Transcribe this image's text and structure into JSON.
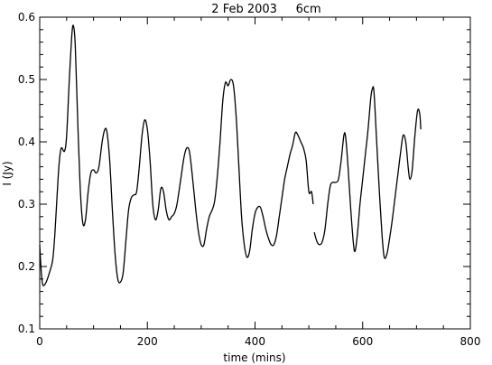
{
  "chart_data": {
    "type": "line",
    "title": "2 Feb 2003     6cm",
    "xlabel": "time (mins)",
    "ylabel": "I (Jy)",
    "xlim": [
      0,
      800
    ],
    "ylim": [
      0.1,
      0.6
    ],
    "xticks": [
      0,
      200,
      400,
      600,
      800
    ],
    "yticks": [
      0.1,
      0.2,
      0.3,
      0.4,
      0.5,
      0.6
    ],
    "xtick_labels": [
      "0",
      "200",
      "400",
      "600",
      "800"
    ],
    "ytick_labels": [
      "0.1",
      "0.2",
      "0.3",
      "0.4",
      "0.5",
      "0.6"
    ],
    "grid": false,
    "series": [
      {
        "segments": [
          [
            [
              0,
              0.235
            ],
            [
              3,
              0.19
            ],
            [
              6,
              0.17
            ],
            [
              12,
              0.175
            ],
            [
              18,
              0.19
            ],
            [
              24,
              0.21
            ],
            [
              28,
              0.25
            ],
            [
              32,
              0.31
            ],
            [
              36,
              0.365
            ],
            [
              40,
              0.39
            ],
            [
              46,
              0.385
            ],
            [
              50,
              0.41
            ],
            [
              55,
              0.5
            ],
            [
              60,
              0.575
            ],
            [
              63,
              0.585
            ],
            [
              66,
              0.555
            ],
            [
              70,
              0.45
            ],
            [
              75,
              0.33
            ],
            [
              80,
              0.27
            ],
            [
              85,
              0.275
            ],
            [
              90,
              0.32
            ],
            [
              95,
              0.35
            ],
            [
              100,
              0.355
            ],
            [
              105,
              0.35
            ],
            [
              110,
              0.36
            ],
            [
              116,
              0.4
            ],
            [
              121,
              0.42
            ],
            [
              125,
              0.415
            ],
            [
              130,
              0.37
            ],
            [
              135,
              0.29
            ],
            [
              140,
              0.22
            ],
            [
              145,
              0.18
            ],
            [
              150,
              0.175
            ],
            [
              155,
              0.19
            ],
            [
              160,
              0.24
            ],
            [
              165,
              0.29
            ],
            [
              170,
              0.31
            ],
            [
              175,
              0.315
            ],
            [
              180,
              0.32
            ],
            [
              185,
              0.36
            ],
            [
              190,
              0.41
            ],
            [
              195,
              0.435
            ],
            [
              200,
              0.42
            ],
            [
              205,
              0.37
            ],
            [
              210,
              0.3
            ],
            [
              215,
              0.275
            ],
            [
              220,
              0.29
            ],
            [
              225,
              0.325
            ],
            [
              230,
              0.32
            ],
            [
              235,
              0.29
            ],
            [
              240,
              0.275
            ],
            [
              245,
              0.28
            ],
            [
              250,
              0.285
            ],
            [
              255,
              0.3
            ],
            [
              262,
              0.34
            ],
            [
              268,
              0.375
            ],
            [
              273,
              0.39
            ],
            [
              278,
              0.385
            ],
            [
              283,
              0.35
            ],
            [
              290,
              0.29
            ],
            [
              295,
              0.255
            ],
            [
              300,
              0.235
            ],
            [
              305,
              0.235
            ],
            [
              310,
              0.26
            ],
            [
              315,
              0.28
            ],
            [
              320,
              0.29
            ],
            [
              325,
              0.305
            ],
            [
              330,
              0.345
            ],
            [
              335,
              0.4
            ],
            [
              340,
              0.465
            ],
            [
              345,
              0.495
            ],
            [
              350,
              0.49
            ],
            [
              355,
              0.5
            ],
            [
              360,
              0.49
            ],
            [
              365,
              0.44
            ],
            [
              370,
              0.36
            ],
            [
              375,
              0.28
            ],
            [
              380,
              0.235
            ],
            [
              385,
              0.215
            ],
            [
              390,
              0.225
            ],
            [
              395,
              0.26
            ],
            [
              400,
              0.285
            ],
            [
              405,
              0.295
            ],
            [
              410,
              0.295
            ],
            [
              415,
              0.28
            ],
            [
              420,
              0.26
            ],
            [
              425,
              0.245
            ],
            [
              430,
              0.235
            ],
            [
              435,
              0.235
            ],
            [
              440,
              0.25
            ],
            [
              445,
              0.28
            ],
            [
              450,
              0.31
            ],
            [
              455,
              0.34
            ],
            [
              460,
              0.36
            ],
            [
              465,
              0.38
            ],
            [
              470,
              0.395
            ],
            [
              475,
              0.415
            ],
            [
              480,
              0.41
            ],
            [
              485,
              0.4
            ],
            [
              490,
              0.39
            ],
            [
              495,
              0.37
            ],
            [
              500,
              0.32
            ],
            [
              505,
              0.32
            ],
            [
              508,
              0.3
            ]
          ],
          [
            [
              510,
              0.255
            ],
            [
              515,
              0.24
            ],
            [
              520,
              0.235
            ],
            [
              525,
              0.24
            ],
            [
              530,
              0.26
            ],
            [
              535,
              0.3
            ],
            [
              540,
              0.33
            ],
            [
              545,
              0.335
            ],
            [
              550,
              0.335
            ],
            [
              555,
              0.34
            ],
            [
              560,
              0.37
            ],
            [
              565,
              0.41
            ],
            [
              568,
              0.41
            ],
            [
              572,
              0.37
            ],
            [
              578,
              0.29
            ],
            [
              583,
              0.235
            ],
            [
              586,
              0.225
            ],
            [
              590,
              0.25
            ],
            [
              595,
              0.3
            ],
            [
              600,
              0.34
            ],
            [
              605,
              0.38
            ],
            [
              610,
              0.42
            ],
            [
              615,
              0.47
            ],
            [
              618,
              0.485
            ],
            [
              621,
              0.48
            ],
            [
              626,
              0.4
            ],
            [
              631,
              0.32
            ],
            [
              636,
              0.25
            ],
            [
              640,
              0.215
            ],
            [
              645,
              0.22
            ],
            [
              650,
              0.245
            ],
            [
              655,
              0.275
            ],
            [
              660,
              0.31
            ],
            [
              665,
              0.345
            ],
            [
              670,
              0.38
            ],
            [
              675,
              0.41
            ],
            [
              680,
              0.4
            ],
            [
              685,
              0.355
            ],
            [
              688,
              0.34
            ],
            [
              692,
              0.355
            ],
            [
              697,
              0.41
            ],
            [
              702,
              0.45
            ],
            [
              706,
              0.445
            ],
            [
              708,
              0.42
            ]
          ]
        ]
      }
    ]
  }
}
